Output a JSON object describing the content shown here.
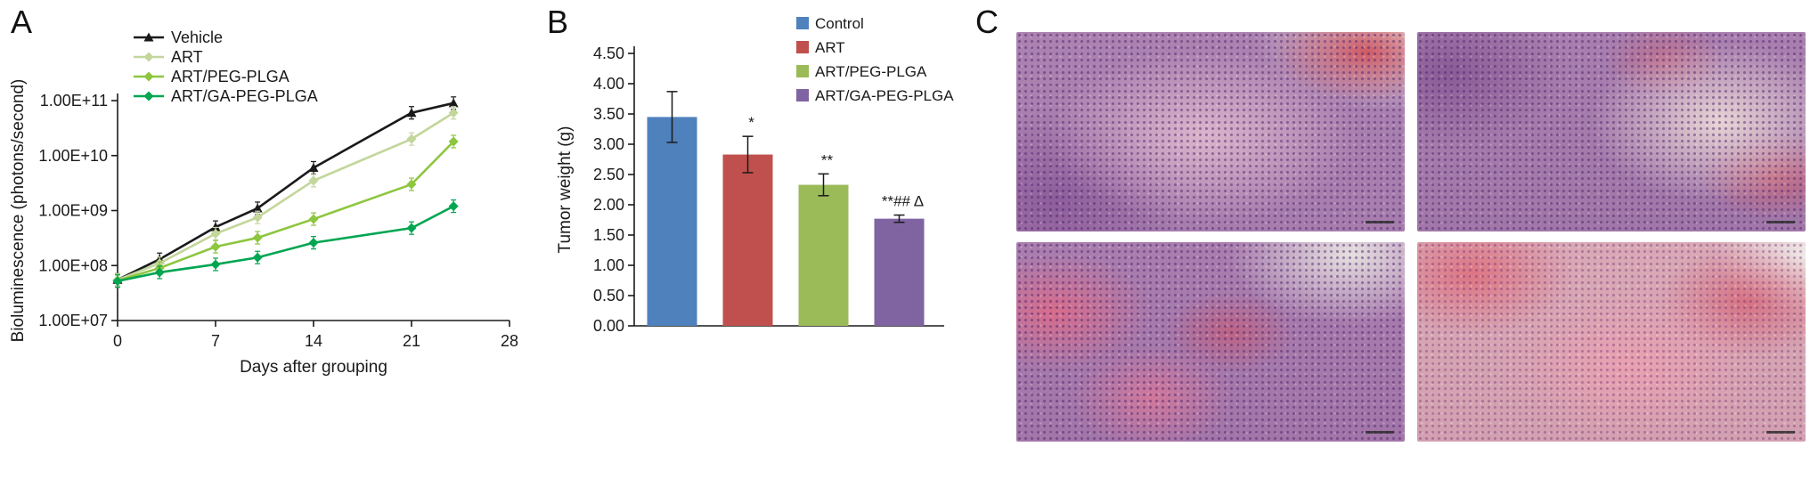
{
  "panels": {
    "a": {
      "label": "A"
    },
    "b": {
      "label": "B"
    },
    "c": {
      "label": "C"
    }
  },
  "chart_data": [
    {
      "type": "line",
      "panel": "A",
      "xlabel": "Days after grouping",
      "ylabel": "Bioluminescence (photons/second)",
      "y_scale": "log",
      "ylim": [
        10000000.0,
        100000000000.0
      ],
      "y_tick_labels": [
        "1.00E+07",
        "1.00E+08",
        "1.00E+09",
        "1.00E+10",
        "1.00E+11"
      ],
      "xlim": [
        0,
        28
      ],
      "x_ticks": [
        0,
        7,
        14,
        21,
        28
      ],
      "x": [
        0,
        3,
        7,
        10,
        14,
        21,
        24
      ],
      "legend_position": "top-left",
      "grid": false,
      "series": [
        {
          "name": "Vehicle",
          "color": "#1a1a1a",
          "marker": "triangle",
          "values": [
            55000000.0,
            130000000.0,
            500000000.0,
            1100000000.0,
            6000000000.0,
            60000000000.0,
            90000000000.0
          ]
        },
        {
          "name": "ART",
          "color": "#c3d69b",
          "marker": "diamond",
          "values": [
            55000000.0,
            110000000.0,
            380000000.0,
            750000000.0,
            3500000000.0,
            20000000000.0,
            60000000000.0
          ]
        },
        {
          "name": "ART/PEG-PLGA",
          "color": "#8dc63f",
          "marker": "diamond",
          "values": [
            53000000.0,
            90000000.0,
            220000000.0,
            320000000.0,
            700000000.0,
            3000000000.0,
            18000000000.0
          ]
        },
        {
          "name": "ART/GA-PEG-PLGA",
          "color": "#00a651",
          "marker": "diamond",
          "values": [
            52000000.0,
            75000000.0,
            105000000.0,
            140000000.0,
            260000000.0,
            480000000.0,
            1200000000.0
          ]
        }
      ]
    },
    {
      "type": "bar",
      "panel": "B",
      "ylabel": "Tumor weight (g)",
      "ylim": [
        0,
        4.5
      ],
      "y_tick_step": 0.5,
      "y_tick_labels": [
        "0.00",
        "0.50",
        "1.00",
        "1.50",
        "2.00",
        "2.50",
        "3.00",
        "3.50",
        "4.00",
        "4.50"
      ],
      "categories": [
        "Control",
        "ART",
        "ART/PEG-PLGA",
        "ART/GA-PEG-PLGA"
      ],
      "values": [
        3.45,
        2.83,
        2.33,
        1.77
      ],
      "errors": [
        0.42,
        0.3,
        0.18,
        0.06
      ],
      "annotations": [
        "",
        "*",
        "**",
        "**## Δ"
      ],
      "colors": [
        "#4f81bd",
        "#c0504d",
        "#9bbb59",
        "#8064a2"
      ],
      "legend_position": "top-right",
      "grid": false
    }
  ]
}
